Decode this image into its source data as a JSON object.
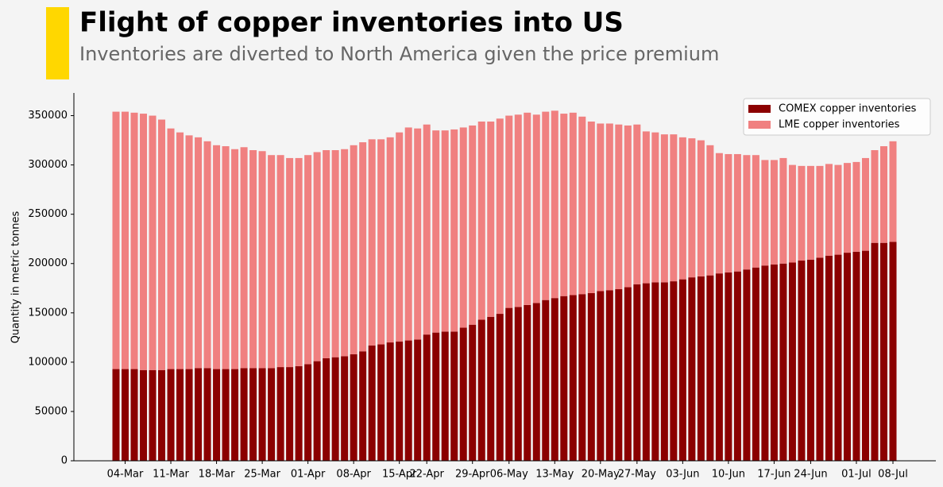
{
  "chart_data": {
    "type": "stacked-bar",
    "title": "Flight of copper inventories into US",
    "subtitle": "Inventories are diverted to North America given the price premium",
    "ylabel": "Quantity in metric tonnes",
    "categories": [
      null,
      "04-Mar",
      null,
      null,
      null,
      null,
      "11-Mar",
      null,
      null,
      null,
      null,
      "18-Mar",
      null,
      null,
      null,
      null,
      "25-Mar",
      null,
      null,
      null,
      null,
      "01-Apr",
      null,
      null,
      null,
      null,
      "08-Apr",
      null,
      null,
      null,
      null,
      "15-Apr",
      null,
      null,
      "22-Apr",
      null,
      null,
      null,
      null,
      "29-Apr",
      null,
      null,
      null,
      "06-May",
      null,
      null,
      null,
      null,
      "13-May",
      null,
      null,
      null,
      null,
      "20-May",
      null,
      null,
      null,
      "27-May",
      null,
      null,
      null,
      null,
      "03-Jun",
      null,
      null,
      null,
      null,
      "10-Jun",
      null,
      null,
      null,
      null,
      "17-Jun",
      null,
      null,
      null,
      "24-Jun",
      null,
      null,
      null,
      null,
      "01-Jul",
      null,
      null,
      null,
      "08-Jul"
    ],
    "series": [
      {
        "name": "COMEX copper inventories",
        "color": "#8b0000",
        "values": [
          93000,
          93000,
          93000,
          92000,
          92000,
          92000,
          93000,
          93000,
          93000,
          94000,
          94000,
          93000,
          93000,
          93000,
          94000,
          94000,
          94000,
          94000,
          95000,
          95000,
          96000,
          98000,
          101000,
          104000,
          105000,
          106000,
          108000,
          111000,
          117000,
          118000,
          120000,
          121000,
          122000,
          123000,
          128000,
          130000,
          131000,
          131000,
          135000,
          138000,
          143000,
          146000,
          149000,
          155000,
          156000,
          158000,
          160000,
          163000,
          165000,
          167000,
          168000,
          169000,
          170000,
          172000,
          173000,
          174000,
          176000,
          179000,
          180000,
          181000,
          181000,
          182000,
          184000,
          186000,
          187000,
          188000,
          190000,
          191000,
          192000,
          194000,
          196000,
          198000,
          199000,
          200000,
          201000,
          203000,
          204000,
          206000,
          208000,
          209000,
          211000,
          212000,
          213000,
          221000,
          221000,
          222000
        ]
      },
      {
        "name": "LME copper inventories",
        "color": "#f08080",
        "values": [
          261000,
          261000,
          260000,
          260000,
          258000,
          254000,
          244000,
          240000,
          237000,
          234000,
          230000,
          227000,
          226000,
          223000,
          224000,
          221000,
          220000,
          216000,
          215000,
          212000,
          211000,
          212000,
          212000,
          211000,
          210000,
          210000,
          212000,
          212000,
          209000,
          208000,
          208000,
          212000,
          216000,
          214000,
          213000,
          205000,
          204000,
          205000,
          203000,
          202000,
          201000,
          198000,
          198000,
          195000,
          195000,
          195000,
          191000,
          191000,
          190000,
          185000,
          185000,
          180000,
          174000,
          170000,
          169000,
          167000,
          164000,
          162000,
          154000,
          152000,
          150000,
          149000,
          144000,
          141000,
          138000,
          132000,
          122000,
          120000,
          119000,
          116000,
          114000,
          107000,
          106000,
          107000,
          99000,
          96000,
          95000,
          93000,
          93000,
          91000,
          91000,
          91000,
          94000,
          94000,
          98000,
          102000
        ]
      }
    ],
    "ylim": [
      0,
      373000
    ],
    "yticks": [
      0,
      50000,
      100000,
      150000,
      200000,
      250000,
      300000,
      350000
    ],
    "grid": false,
    "legend": "upper-right"
  }
}
